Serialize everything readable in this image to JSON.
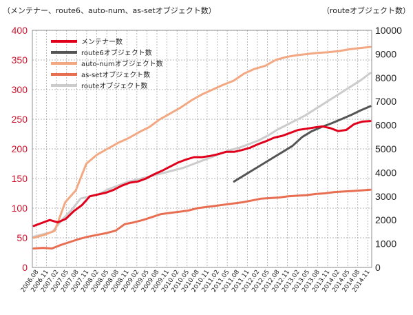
{
  "chart_data": {
    "type": "line",
    "left_axis_title": "（メンテナー、route6、auto-num、as-setオブジェクト数）",
    "right_axis_title": "（routeオブジェクト数）",
    "y_left": {
      "min": 0,
      "max": 400,
      "ticks": [
        "0",
        "50",
        "100",
        "150",
        "200",
        "250",
        "300",
        "350",
        "400"
      ]
    },
    "y_right": {
      "min": 0,
      "max": 10000,
      "ticks": [
        "0",
        "1000",
        "2000",
        "3000",
        "4000",
        "5000",
        "6000",
        "7000",
        "8000",
        "9000",
        "10000"
      ]
    },
    "x_tick_labels": [
      "2006.08",
      "2006.11",
      "2007.02",
      "2007.05",
      "2007.08",
      "2007.11",
      "2008.02",
      "2008.05",
      "2008.08",
      "2008.11",
      "2009.02",
      "2009.05",
      "2009.08",
      "2009.11",
      "2010.02",
      "2010.05",
      "2010.08",
      "2010.11",
      "2011.02",
      "2011.05",
      "2011.08",
      "2011.11",
      "2012.02",
      "2012.05",
      "2012.08",
      "2012.11",
      "2013.02",
      "2013.05",
      "2013.08",
      "2013.11",
      "2014.02",
      "2014.05",
      "2014.08",
      "2014.11"
    ],
    "grid": true,
    "legend": "top-left",
    "series": [
      {
        "name": "メンテナー数",
        "axis": "left",
        "color": "#e0001b",
        "width": 3,
        "values": [
          70,
          75,
          80,
          76,
          82,
          95,
          105,
          120,
          123,
          126,
          131,
          138,
          143,
          145,
          150,
          157,
          163,
          170,
          177,
          182,
          186,
          186,
          188,
          191,
          195,
          195,
          198,
          202,
          208,
          213,
          219,
          222,
          227,
          232,
          234,
          236,
          238,
          235,
          230,
          232,
          242,
          246,
          247
        ]
      },
      {
        "name": "route6オブジェクト数",
        "axis": "left",
        "color": "#555555",
        "width": 3,
        "start_index": 25,
        "values": [
          145,
          155,
          165,
          175,
          185,
          195,
          205,
          220,
          230,
          237,
          243,
          250,
          257,
          265,
          272
        ]
      },
      {
        "name": "auto-numオブジェクト数",
        "axis": "left",
        "color": "#f2a882",
        "width": 3,
        "values": [
          50,
          55,
          62,
          110,
          130,
          175,
          190,
          200,
          210,
          218,
          228,
          237,
          250,
          260,
          270,
          282,
          292,
          300,
          308,
          315,
          327,
          335,
          340,
          350,
          355,
          358,
          360,
          362,
          363,
          365,
          368,
          370,
          372
        ]
      },
      {
        "name": "as-setオブジェクト数",
        "axis": "left",
        "color": "#e86e52",
        "width": 3,
        "values": [
          32,
          33,
          32,
          38,
          43,
          48,
          52,
          55,
          58,
          62,
          73,
          76,
          80,
          85,
          90,
          92,
          94,
          96,
          100,
          102,
          104,
          106,
          108,
          110,
          113,
          116,
          117,
          118,
          120,
          121,
          122,
          124,
          125,
          127,
          128,
          129,
          130,
          131
        ]
      },
      {
        "name": "routeオブジェクト数",
        "axis": "right",
        "color": "#cccccc",
        "width": 3,
        "values": [
          1300,
          1400,
          1500,
          2000,
          2400,
          2900,
          3000,
          3100,
          3300,
          3450,
          3600,
          3700,
          3800,
          3900,
          4000,
          4100,
          4200,
          4350,
          4500,
          4650,
          4800,
          4950,
          5050,
          5200,
          5350,
          5550,
          5800,
          6000,
          6200,
          6400,
          6650,
          6900,
          7150,
          7400,
          7650,
          7900,
          8200
        ]
      }
    ]
  }
}
